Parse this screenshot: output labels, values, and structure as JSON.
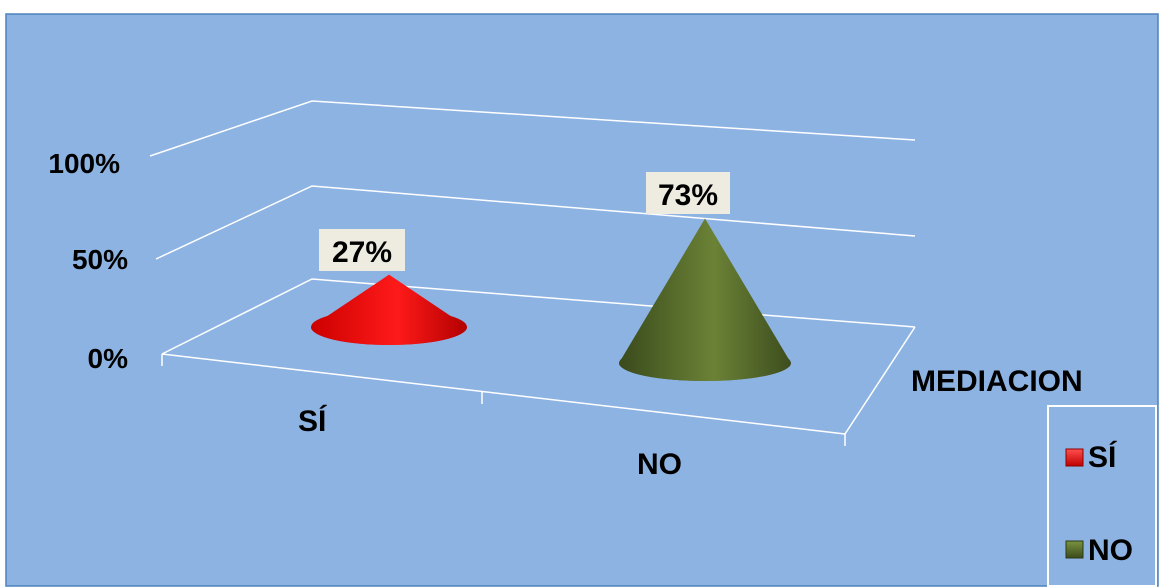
{
  "chart_data": {
    "type": "bar",
    "style": "3d-cone",
    "categories": [
      "SÍ",
      "NO"
    ],
    "series": [
      {
        "name": "SÍ",
        "values": [
          27,
          null
        ],
        "color": "#ff0000"
      },
      {
        "name": "NO",
        "values": [
          null,
          73
        ],
        "color": "#4f6228"
      }
    ],
    "data_labels": [
      "27%",
      "73%"
    ],
    "y_ticks": [
      "0%",
      "50%",
      "100%"
    ],
    "ylim": [
      0,
      100
    ],
    "depth_axis_label": "MEDIACION",
    "legend": {
      "position": "right",
      "entries": [
        "SÍ",
        "NO"
      ]
    },
    "grid": true,
    "background_color": "#8db3e2"
  }
}
